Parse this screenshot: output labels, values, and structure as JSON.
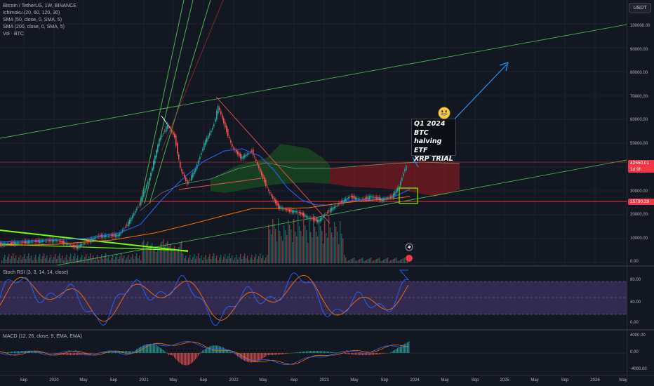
{
  "symbol": {
    "title": "Bitcoin / TetherUS, 1W, BINANCE"
  },
  "indicators": [
    "Ichimoku (20, 60, 120, 30)",
    "SMA (50, close, 0, SMA, 5)",
    "SMA (200, close, 0, SMA, 5)",
    "Vol · BTC"
  ],
  "currency_button": "USDT",
  "main_scale": [
    "100000.00",
    "90000.00",
    "80000.00",
    "70000.00",
    "60000.00",
    "50000.00",
    "40000.00",
    "30000.00",
    "20000.00",
    "10000.00",
    "0.00"
  ],
  "price_tags": {
    "current_price": "42550.01",
    "countdown": "1d 9h",
    "support_level": "25790.29"
  },
  "annotation": {
    "lines": [
      "Q1 2024",
      "BTC halving",
      "ETF",
      "XRP TRIAL"
    ],
    "emoji": "smiling-face"
  },
  "rsi": {
    "title": "Stoch RSI (3, 3, 14, 14, close)",
    "scale": [
      "80.00",
      "40.00",
      "0.00"
    ]
  },
  "macd": {
    "title": "MACD (12, 26, close, 9, EMA, EMA)",
    "scale": [
      "4000.00",
      "0.00",
      "-4000.00"
    ]
  },
  "time_axis": [
    "Sep",
    "2020",
    "May",
    "Sep",
    "2021",
    "May",
    "Sep",
    "2022",
    "May",
    "Sep",
    "2023",
    "May",
    "Sep",
    "2024",
    "May",
    "Sep",
    "2025",
    "May",
    "Sep",
    "2026",
    "May"
  ],
  "colors": {
    "background": "#131722",
    "up": "#26a69a",
    "down": "#ef5350",
    "trend_green": "#4caf50",
    "sma50": "#2962ff",
    "sma200": "#ff6d00",
    "cloud_green": "#1b5e20",
    "cloud_red": "#b71c1c",
    "rsi_band": "#7e57c2",
    "current_tag": "#f23645",
    "support_tag": "#f23645",
    "annotation_arrow": "#2196f3"
  }
}
